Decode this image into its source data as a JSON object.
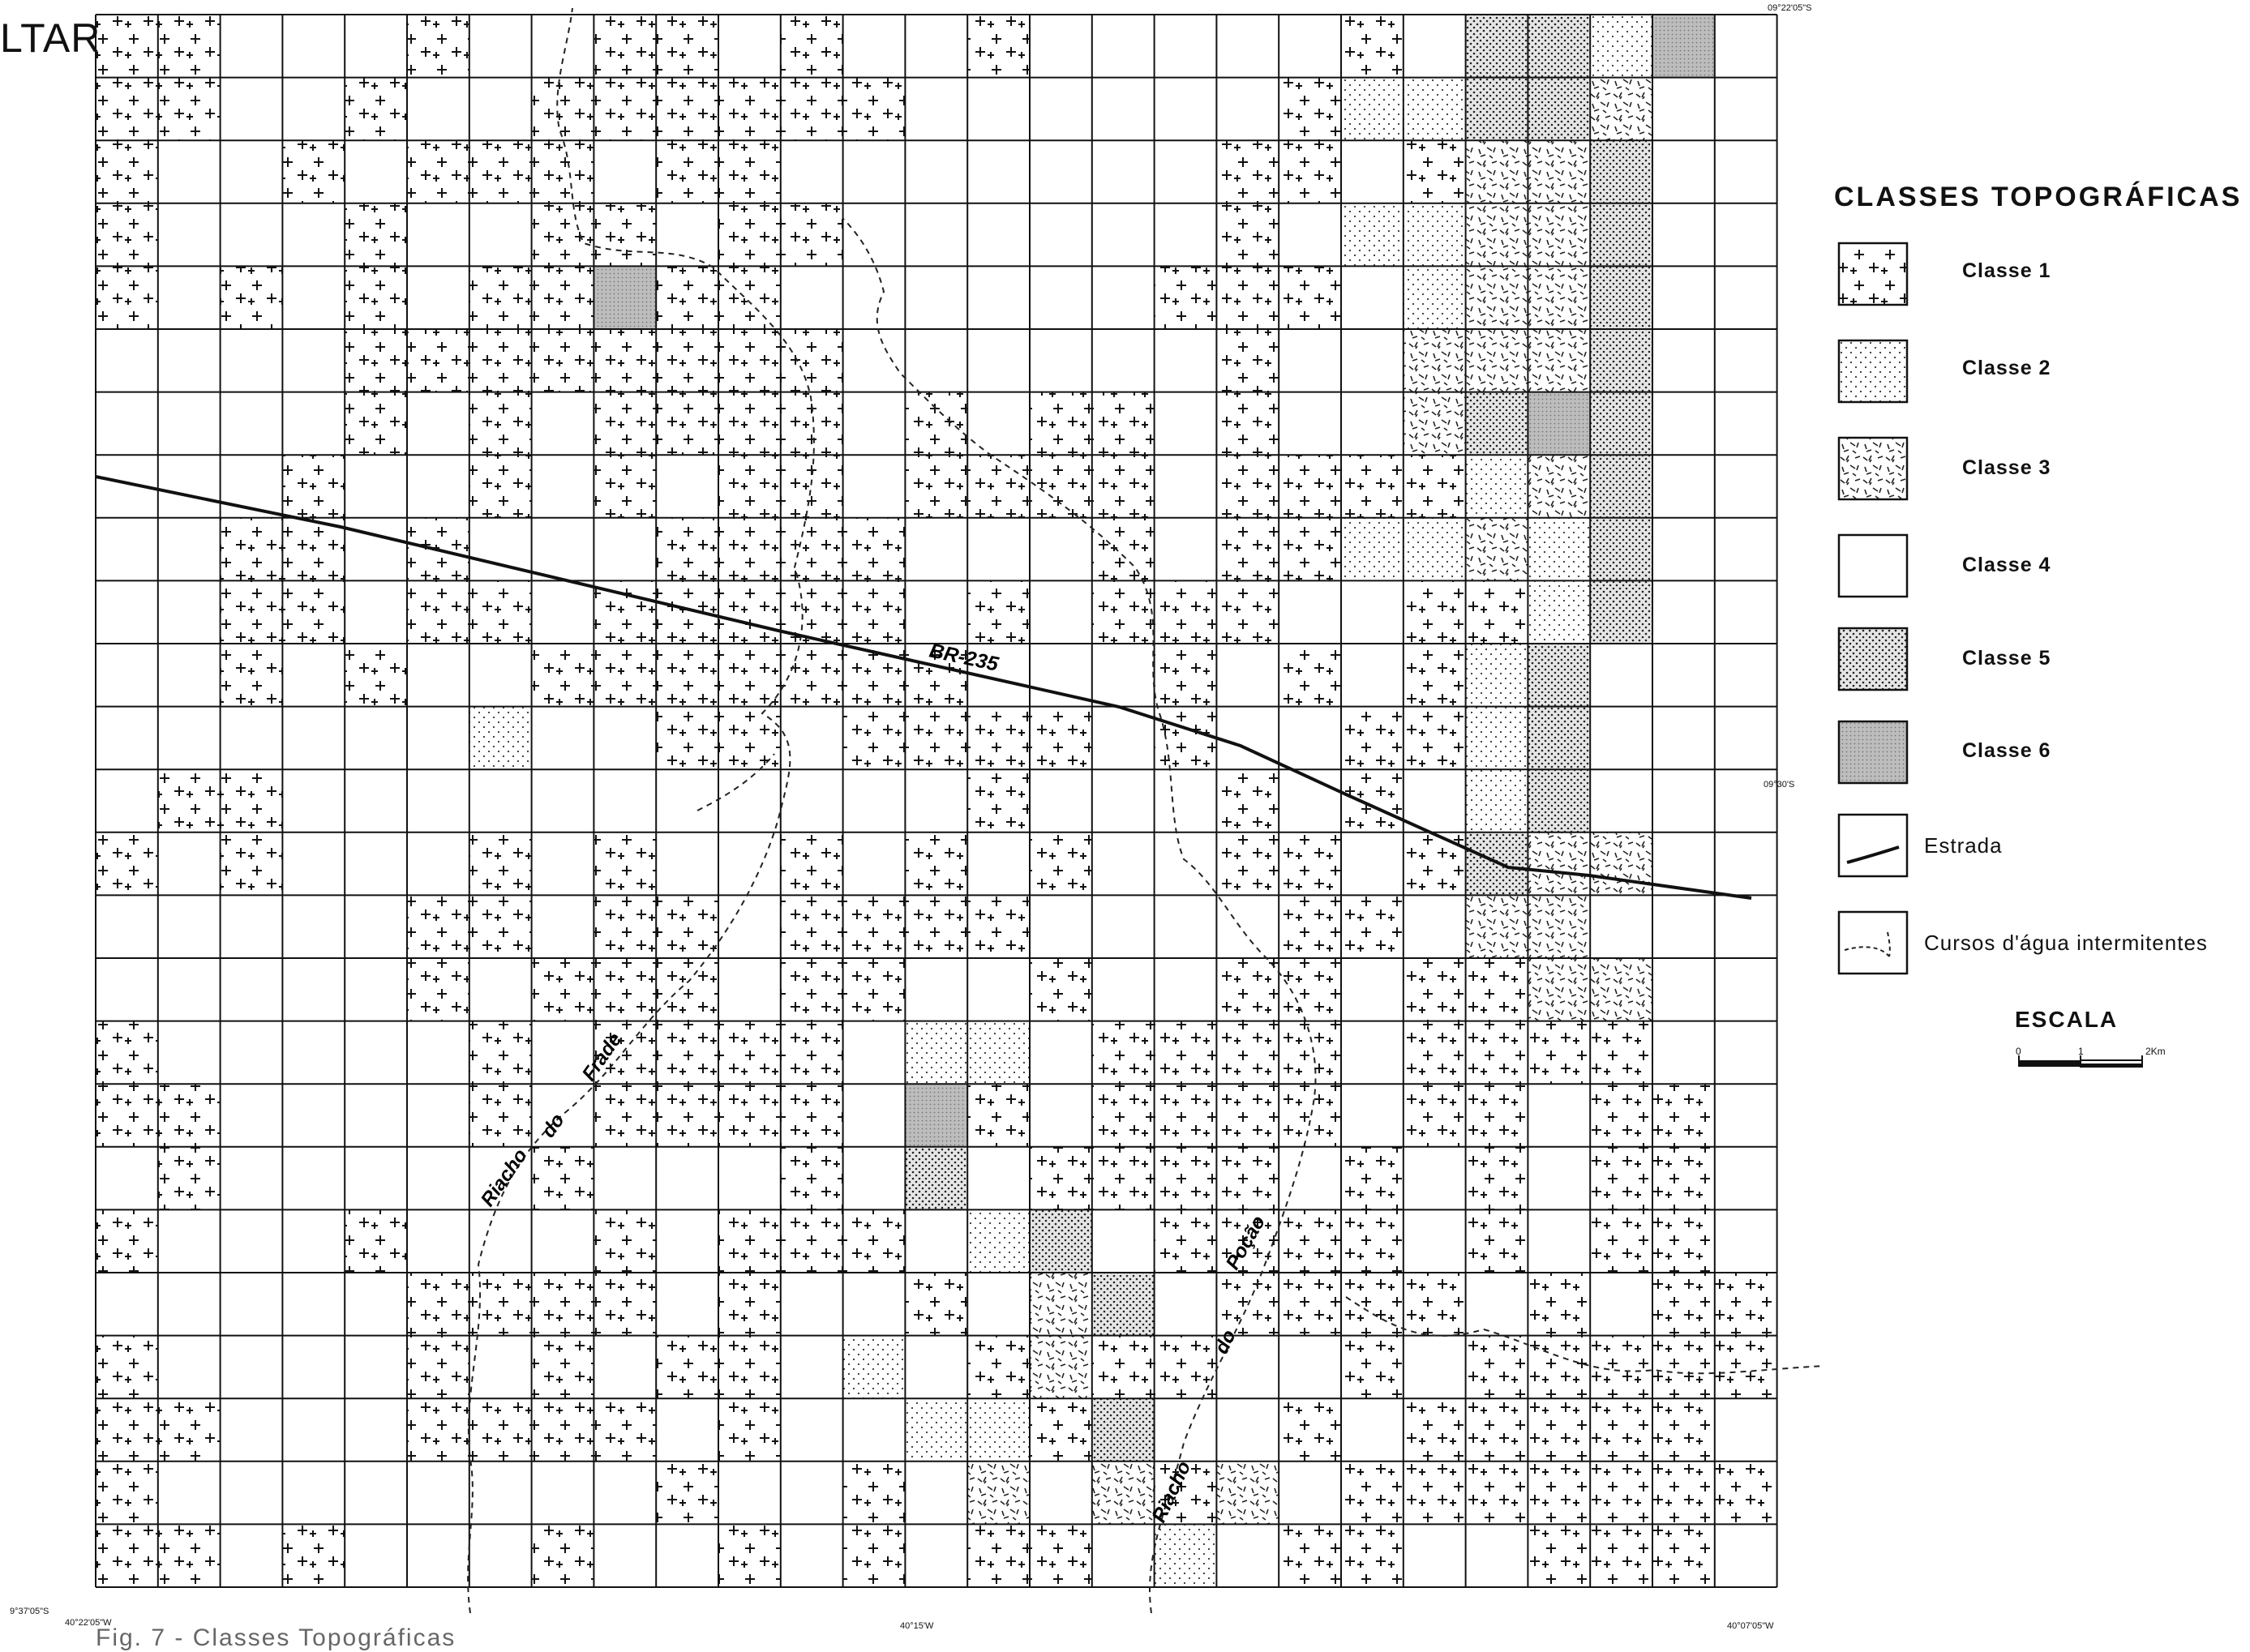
{
  "fragment_text": "LTAR",
  "coordinates": {
    "top_right_lat": "09°22'05\"S",
    "mid_right_lat": "09°30'S",
    "bottom_left_lat": "9°37'05\"S",
    "bottom_left_lon": "40°22'05\"W",
    "bottom_mid_lon": "40°15'W",
    "bottom_right_lon": "40°07'05\"W"
  },
  "labels": {
    "road": "BR-235",
    "stream_left_1": "Riacho",
    "stream_left_2": "do",
    "stream_left_3": "Frade",
    "stream_right_1": "Riacho",
    "stream_right_2": "do",
    "stream_right_3": "Poção"
  },
  "legend": {
    "title": "CLASSES TOPOGRÁFICAS",
    "items": [
      {
        "key": "c1",
        "label": "Classe 1"
      },
      {
        "key": "c2",
        "label": "Classe 2"
      },
      {
        "key": "c3",
        "label": "Classe 3"
      },
      {
        "key": "c4",
        "label": "Classe 4"
      },
      {
        "key": "c5",
        "label": "Classe 5"
      },
      {
        "key": "c6",
        "label": "Classe 6"
      },
      {
        "key": "road",
        "label": "Estrada"
      },
      {
        "key": "stream",
        "label": "Cursos d'água intermitentes"
      }
    ]
  },
  "scale": {
    "title": "ESCALA",
    "start": "0",
    "mid": "1",
    "end": "2Km"
  },
  "caption": "Fig. 7 - Classes Topográficas"
}
